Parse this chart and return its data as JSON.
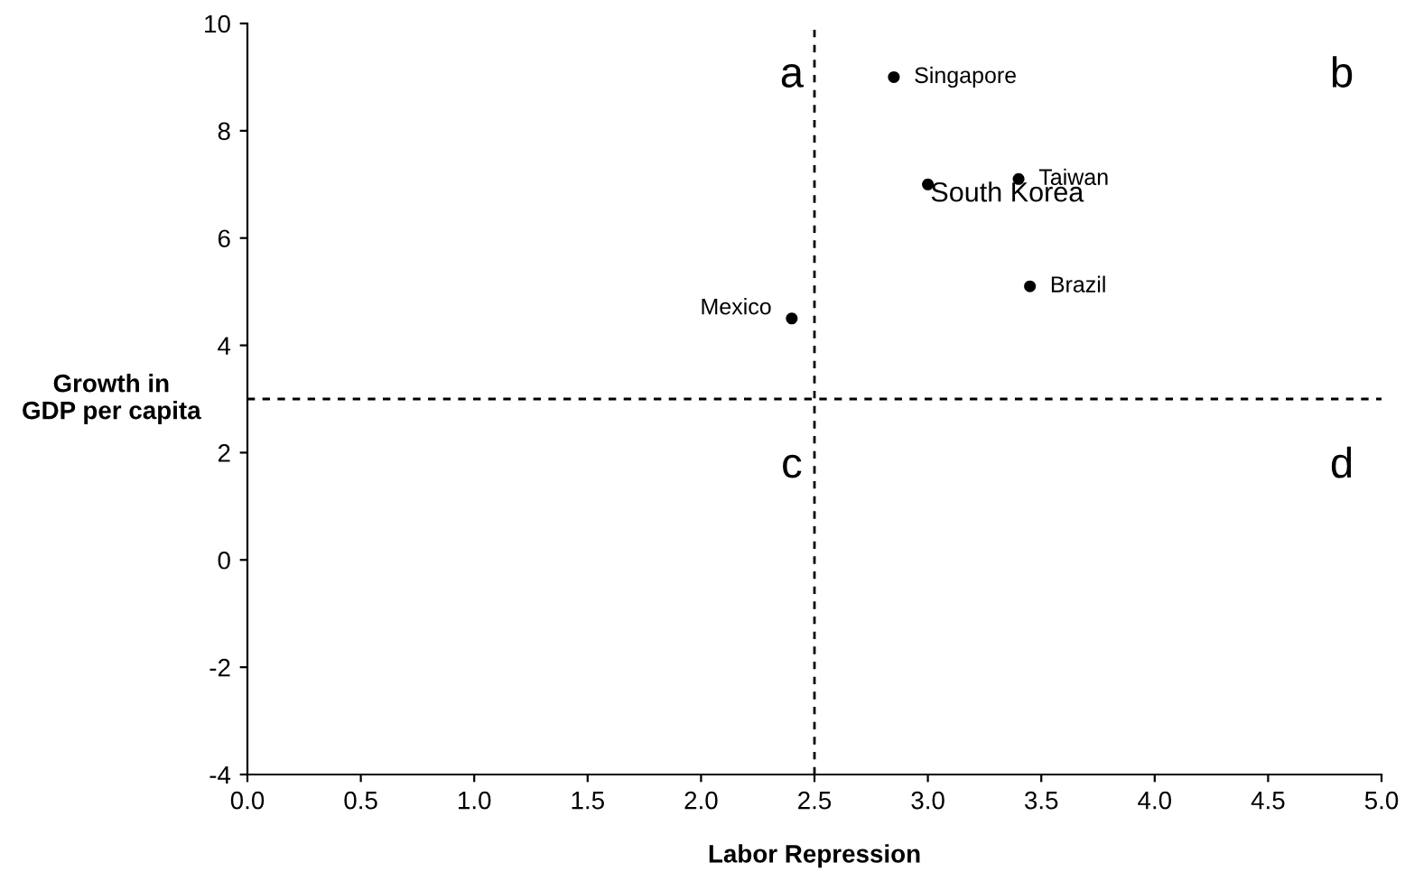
{
  "chart_data": {
    "type": "scatter",
    "xlabel": "Labor Repression",
    "ylabel": "Growth in\nGDP per capita",
    "x": [
      2.85,
      3.4,
      3.0,
      3.45,
      2.4
    ],
    "values": [
      9.0,
      7.1,
      7.0,
      5.1,
      4.5
    ],
    "color": "#000000",
    "marker": "circle",
    "xlim": [
      0.0,
      5.0
    ],
    "xticks": [
      {
        "value": 0,
        "label": "0.0"
      },
      {
        "value": 0.5,
        "label": "0.5"
      },
      {
        "value": 1,
        "label": "1.0"
      },
      {
        "value": 1.5,
        "label": "1.5"
      },
      {
        "value": 2,
        "label": "2.0"
      },
      {
        "value": 2.5,
        "label": "2.5"
      },
      {
        "value": 3,
        "label": "3.0"
      },
      {
        "value": 3.5,
        "label": "3.5"
      },
      {
        "value": 4,
        "label": "4.0"
      },
      {
        "value": 4.5,
        "label": "4.5"
      },
      {
        "value": 5,
        "label": "5.0"
      }
    ],
    "ylim": [
      -4,
      10
    ],
    "yticks": [
      -4,
      -2,
      0,
      2,
      4,
      6,
      8,
      10
    ],
    "ref_lines": [
      {
        "axis": "x",
        "value": 2.5,
        "line_style": "dashed",
        "color": "#000000"
      },
      {
        "axis": "y",
        "value": 3,
        "line_style": "dashed",
        "color": "#000000"
      }
    ],
    "annotations": [
      {
        "text": "Singapore",
        "x": 2.85,
        "y": 9.0
      },
      {
        "text": "Taiwan",
        "x": 3.4,
        "y": 7.1
      },
      {
        "text": "South Korea",
        "x": 3.0,
        "y": 7.0
      },
      {
        "text": "Brazil",
        "x": 3.45,
        "y": 5.1
      },
      {
        "text": "Mexico",
        "x": 2.4,
        "y": 4.5
      },
      "a",
      "b",
      "c",
      "d"
    ],
    "grid": false,
    "legend": false
  }
}
